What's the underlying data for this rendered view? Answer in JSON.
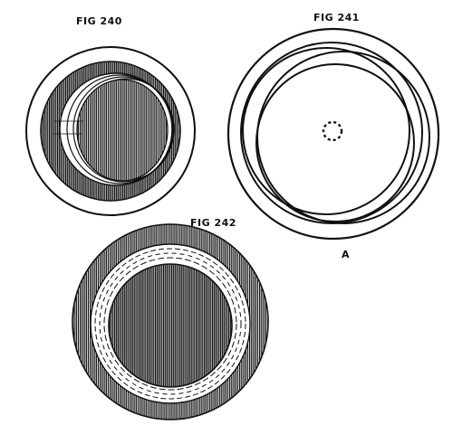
{
  "figures": [
    {
      "label": "FIG 240"
    },
    {
      "label": "FIG 241",
      "marker": "A"
    },
    {
      "label": "FIG 242"
    }
  ],
  "colors": {
    "ink": "#111111",
    "paper": "#ffffff"
  }
}
